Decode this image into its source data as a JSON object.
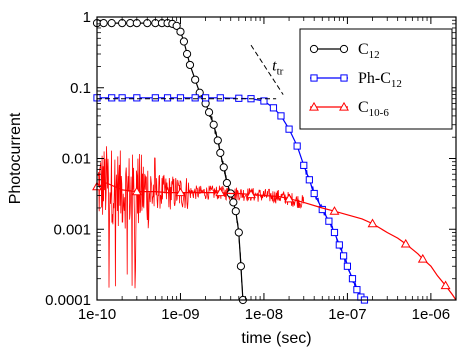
{
  "chart_data": {
    "type": "line",
    "xscale": "log",
    "yscale": "log",
    "xlim": [
      1e-10,
      2e-06
    ],
    "ylim": [
      0.0001,
      1
    ],
    "xlabel": "time (sec)",
    "ylabel": "Photocurrent",
    "x_ticks": [
      1e-10,
      1e-09,
      1e-08,
      1e-07,
      1e-06
    ],
    "x_tick_labels": [
      "1e-10",
      "1e-09",
      "1e-08",
      "1e-07",
      "1e-06"
    ],
    "y_ticks": [
      0.0001,
      0.001,
      0.01,
      0.1,
      1
    ],
    "y_tick_labels": [
      "0.0001",
      "0.001",
      "0.01",
      "0.1",
      "1"
    ],
    "grid": false,
    "legend_position": "top-right",
    "series": [
      {
        "name": "C12",
        "name_base": "C",
        "name_sub": "12",
        "color": "#000000",
        "marker": "circle",
        "x": [
          1e-10,
          1.2e-10,
          1.5e-10,
          2e-10,
          2.5e-10,
          3e-10,
          4e-10,
          5e-10,
          6e-10,
          7e-10,
          8e-10,
          9e-10,
          1e-09,
          1.1e-09,
          1.2e-09,
          1.3e-09,
          1.5e-09,
          1.7e-09,
          2e-09,
          2.2e-09,
          2.5e-09,
          2.8e-09,
          3e-09,
          3.3e-09,
          3.6e-09,
          4e-09,
          4.3e-09,
          4.6e-09,
          5e-09,
          5.3e-09,
          5.6e-09
        ],
        "y": [
          0.82,
          0.82,
          0.82,
          0.82,
          0.82,
          0.82,
          0.82,
          0.82,
          0.82,
          0.82,
          0.8,
          0.75,
          0.62,
          0.45,
          0.3,
          0.21,
          0.13,
          0.085,
          0.06,
          0.045,
          0.03,
          0.018,
          0.012,
          0.0075,
          0.0045,
          0.0032,
          0.0024,
          0.0018,
          0.0009,
          0.0003,
          0.0001
        ]
      },
      {
        "name": "Ph-C12",
        "name_base": "Ph-C",
        "name_sub": "12",
        "color": "#0000ff",
        "marker": "square",
        "x": [
          1e-10,
          1.5e-10,
          2e-10,
          3e-10,
          5e-10,
          7e-10,
          1e-09,
          1.5e-09,
          2e-09,
          3e-09,
          5e-09,
          7e-09,
          1e-08,
          1.3e-08,
          1.6e-08,
          2e-08,
          2.5e-08,
          3e-08,
          3.5e-08,
          4e-08,
          5e-08,
          6e-08,
          7e-08,
          8e-08,
          9e-08,
          1e-07,
          1.15e-07,
          1.3e-07,
          1.45e-07,
          1.6e-07
        ],
        "y": [
          0.072,
          0.072,
          0.072,
          0.072,
          0.072,
          0.072,
          0.072,
          0.072,
          0.072,
          0.072,
          0.071,
          0.07,
          0.065,
          0.052,
          0.04,
          0.026,
          0.015,
          0.008,
          0.005,
          0.0032,
          0.0019,
          0.0013,
          0.0009,
          0.0006,
          0.00042,
          0.0003,
          0.0002,
          0.00014,
          0.00011,
          0.0001
        ]
      },
      {
        "name": "C10-6",
        "name_base": "C",
        "name_sub": "10-6",
        "color": "#ff0000",
        "marker": "triangle",
        "x": [
          1e-10,
          1.3e-10,
          2e-10,
          3e-10,
          5e-10,
          7e-10,
          1e-09,
          1.5e-09,
          2e-09,
          3e-09,
          4e-09,
          5e-09,
          7e-09,
          1e-08,
          1.5e-08,
          2e-08,
          3e-08,
          5e-08,
          7e-08,
          1e-07,
          1.5e-07,
          2e-07,
          3e-07,
          4e-07,
          5e-07,
          6e-07,
          7e-07,
          8e-07,
          1e-06,
          1.2e-06,
          1.5e-06,
          1.8e-06,
          2e-06
        ],
        "y": [
          0.004,
          0.0045,
          0.0036,
          0.0034,
          0.0034,
          0.0033,
          0.0033,
          0.0033,
          0.0033,
          0.0033,
          0.0032,
          0.0032,
          0.0031,
          0.003,
          0.0029,
          0.0027,
          0.0024,
          0.002,
          0.0018,
          0.0016,
          0.0014,
          0.0012,
          0.0009,
          0.00075,
          0.00062,
          0.00052,
          0.00045,
          0.00038,
          0.0003,
          0.00022,
          0.00016,
          0.00012,
          0.0001
        ]
      }
    ],
    "annotations": [
      {
        "text_base": "t",
        "text_sub": "tr",
        "lines": [
          {
            "x": [
              1e-10,
              1.4e-08
            ],
            "y": [
              0.07,
              0.07
            ],
            "style": "dashed"
          },
          {
            "x": [
              7e-09,
              1.7e-08
            ],
            "y": [
              0.4,
              0.08
            ],
            "style": "dashed"
          }
        ]
      }
    ]
  }
}
